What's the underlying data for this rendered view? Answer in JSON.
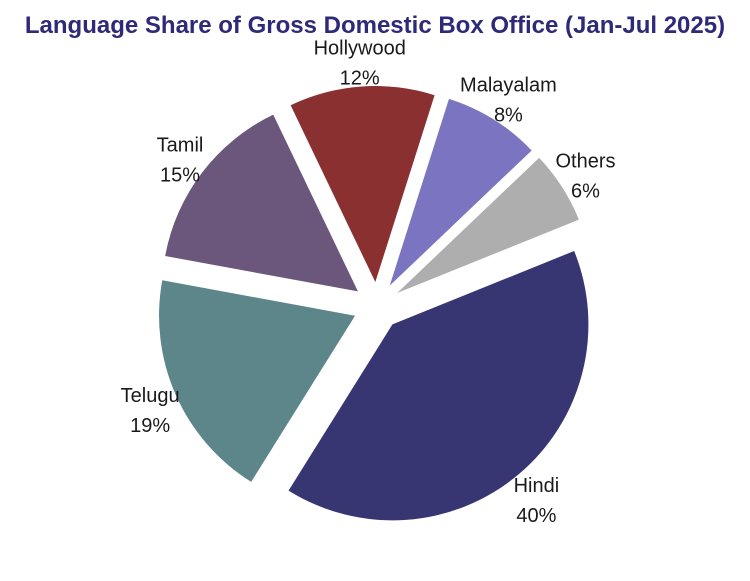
{
  "chart_data": {
    "type": "pie",
    "title": "Language Share of Gross Domestic Box Office (Jan-Jul 2025)",
    "slices": [
      {
        "label": "Hindi",
        "value": 40,
        "display": "40%",
        "color": "#383672"
      },
      {
        "label": "Telugu",
        "value": 19,
        "display": "19%",
        "color": "#5d868a"
      },
      {
        "label": "Tamil",
        "value": 15,
        "display": "15%",
        "color": "#6b577b"
      },
      {
        "label": "Hollywood",
        "value": 12,
        "display": "12%",
        "color": "#8a3031"
      },
      {
        "label": "Malayalam",
        "value": 8,
        "display": "8%",
        "color": "#7b74c0"
      },
      {
        "label": "Others",
        "value": 6,
        "display": "6%",
        "color": "#aeaeae"
      }
    ],
    "exploded": true
  }
}
